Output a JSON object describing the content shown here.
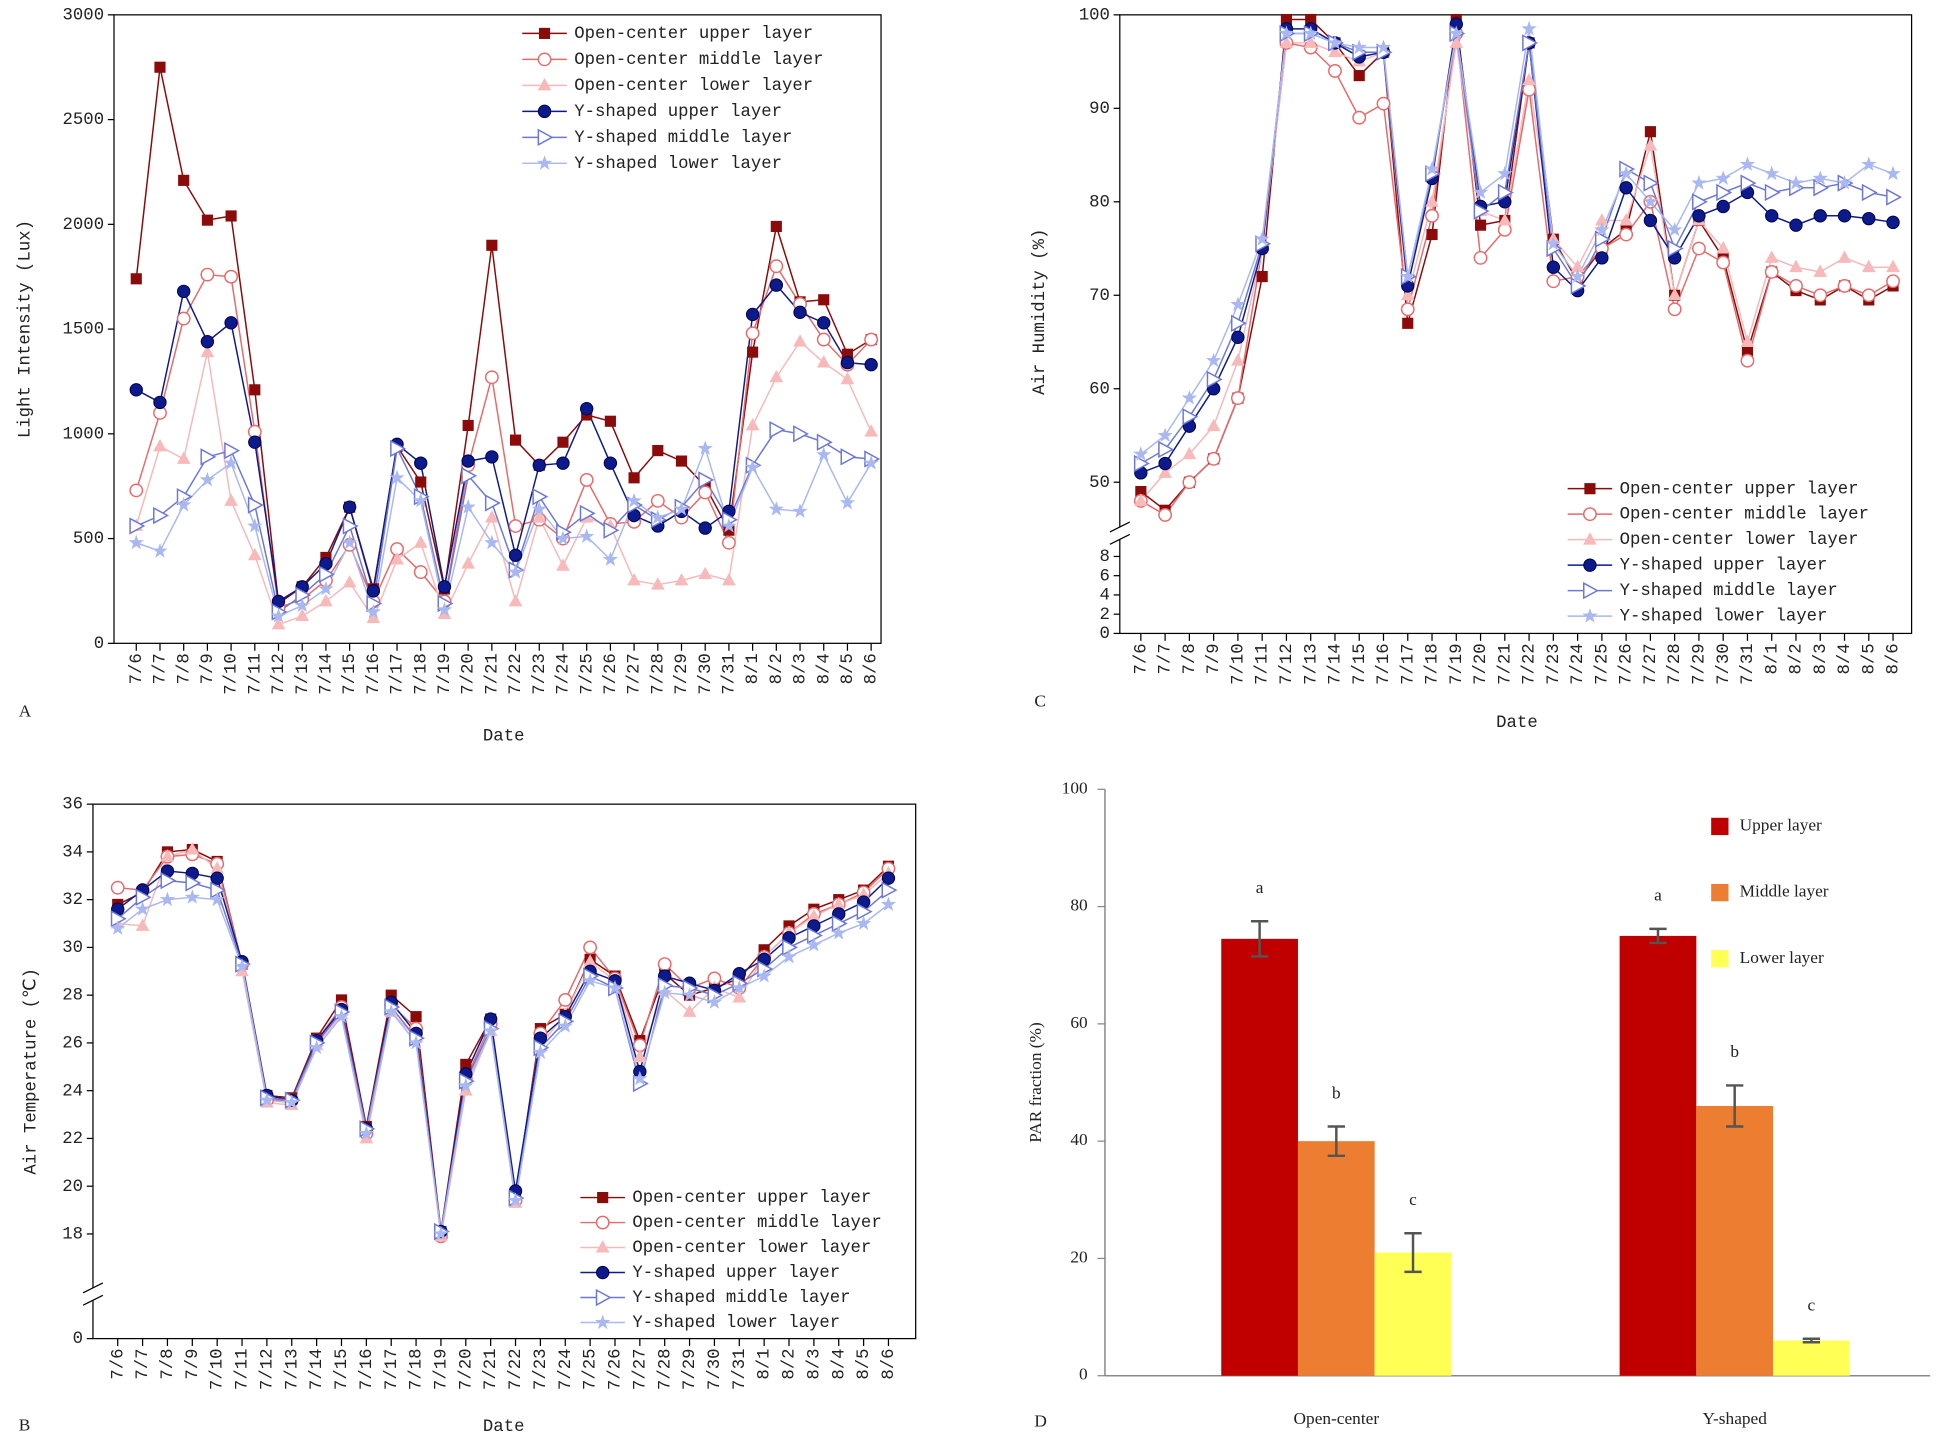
{
  "chart_data": [
    {
      "type": "line",
      "label": "A",
      "xlabel": "Date",
      "ylabel": "Light Intensity (Lux)",
      "legend": "upper right",
      "categories": [
        "7/6",
        "7/7",
        "7/8",
        "7/9",
        "7/10",
        "7/11",
        "7/12",
        "7/13",
        "7/14",
        "7/15",
        "7/16",
        "7/17",
        "7/18",
        "7/19",
        "7/20",
        "7/21",
        "7/22",
        "7/23",
        "7/24",
        "7/25",
        "7/26",
        "7/27",
        "7/28",
        "7/29",
        "7/30",
        "7/31",
        "8/1",
        "8/2",
        "8/3",
        "8/4",
        "8/5",
        "8/6"
      ],
      "ylim": [
        0,
        3000
      ],
      "yticks": [
        0,
        500,
        1000,
        1500,
        2000,
        2500,
        3000
      ],
      "series": [
        {
          "name": "Open-center upper layer",
          "color": "#8b0a0a",
          "marker": "square",
          "values": [
            1740,
            2750,
            2210,
            2020,
            2040,
            1210,
            190,
            270,
            410,
            650,
            260,
            940,
            770,
            260,
            1040,
            1900,
            970,
            850,
            960,
            1090,
            1060,
            790,
            920,
            870,
            750,
            540,
            1390,
            1990,
            1630,
            1640,
            1380,
            1450
          ]
        },
        {
          "name": "Open-center middle layer",
          "color": "#e86a6a",
          "marker": "circle-open",
          "values": [
            730,
            1100,
            1550,
            1760,
            1750,
            1010,
            170,
            210,
            300,
            470,
            200,
            450,
            340,
            200,
            850,
            1270,
            560,
            590,
            500,
            780,
            570,
            580,
            680,
            600,
            720,
            480,
            1480,
            1800,
            1620,
            1450,
            1330,
            1450
          ]
        },
        {
          "name": "Open-center lower layer",
          "color": "#f7b9b9",
          "marker": "triangle",
          "values": [
            560,
            940,
            880,
            1390,
            680,
            420,
            90,
            130,
            200,
            290,
            120,
            400,
            480,
            140,
            380,
            600,
            200,
            600,
            370,
            600,
            560,
            300,
            280,
            300,
            330,
            300,
            1040,
            1270,
            1440,
            1340,
            1260,
            1010
          ]
        },
        {
          "name": "Y-shaped upper layer",
          "color": "#0d1a8c",
          "marker": "circle",
          "values": [
            1210,
            1150,
            1680,
            1440,
            1530,
            960,
            200,
            270,
            380,
            650,
            250,
            950,
            860,
            270,
            870,
            890,
            420,
            850,
            860,
            1120,
            860,
            610,
            560,
            630,
            550,
            630,
            1570,
            1710,
            1580,
            1530,
            1340,
            1330
          ]
        },
        {
          "name": "Y-shaped middle layer",
          "color": "#6c78d8",
          "marker": "triangle-open",
          "values": [
            560,
            610,
            700,
            890,
            920,
            660,
            150,
            230,
            330,
            560,
            190,
            930,
            700,
            190,
            800,
            670,
            350,
            700,
            530,
            620,
            540,
            660,
            590,
            650,
            780,
            590,
            850,
            1020,
            1000,
            960,
            890,
            880
          ]
        },
        {
          "name": "Y-shaped lower layer",
          "color": "#aab8f2",
          "marker": "star",
          "values": [
            480,
            440,
            660,
            780,
            860,
            560,
            130,
            180,
            260,
            480,
            150,
            790,
            680,
            160,
            650,
            480,
            340,
            640,
            500,
            510,
            400,
            680,
            600,
            640,
            930,
            560,
            840,
            640,
            630,
            900,
            670,
            860
          ]
        }
      ]
    },
    {
      "type": "line",
      "label": "B",
      "xlabel": "Date",
      "ylabel": "Air Temperature (℃)",
      "legend": "lower right",
      "categories": [
        "7/6",
        "7/7",
        "7/8",
        "7/9",
        "7/10",
        "7/11",
        "7/12",
        "7/13",
        "7/14",
        "7/15",
        "7/16",
        "7/17",
        "7/18",
        "7/19",
        "7/20",
        "7/21",
        "7/22",
        "7/23",
        "7/24",
        "7/25",
        "7/26",
        "7/27",
        "7/28",
        "7/29",
        "7/30",
        "7/31",
        "8/1",
        "8/2",
        "8/3",
        "8/4",
        "8/5",
        "8/6"
      ],
      "ylim": [
        16,
        36
      ],
      "yticks": [
        18,
        20,
        22,
        24,
        26,
        28,
        30,
        32,
        34,
        36
      ],
      "ylim_break": [
        0,
        1
      ],
      "yticks_break": [
        0
      ],
      "series": [
        {
          "name": "Open-center upper layer",
          "color": "#8b0a0a",
          "marker": "square",
          "values": [
            31.8,
            32.3,
            34.0,
            34.1,
            33.6,
            29.3,
            23.8,
            23.7,
            26.2,
            27.8,
            22.5,
            28.0,
            27.1,
            18.1,
            25.1,
            27.0,
            19.5,
            26.6,
            27.2,
            29.5,
            28.8,
            26.1,
            28.9,
            28.0,
            28.3,
            28.7,
            29.9,
            30.9,
            31.6,
            32.0,
            32.4,
            33.4
          ]
        },
        {
          "name": "Open-center middle layer",
          "color": "#e86a6a",
          "marker": "circle-open",
          "values": [
            32.5,
            32.4,
            33.8,
            33.9,
            33.5,
            29.3,
            23.6,
            23.6,
            26.1,
            27.5,
            22.2,
            27.6,
            26.6,
            17.9,
            24.5,
            26.8,
            19.4,
            26.4,
            27.8,
            30.0,
            28.7,
            25.9,
            29.3,
            28.3,
            28.7,
            28.3,
            29.6,
            30.6,
            31.4,
            31.8,
            32.3,
            33.3
          ]
        },
        {
          "name": "Open-center lower layer",
          "color": "#f7b9b9",
          "marker": "triangle",
          "values": [
            31.0,
            30.9,
            33.8,
            34.1,
            33.3,
            29.0,
            23.5,
            23.4,
            25.9,
            27.2,
            22.0,
            27.3,
            26.2,
            17.9,
            24.0,
            26.5,
            19.3,
            25.9,
            27.2,
            29.4,
            28.6,
            25.4,
            28.2,
            27.3,
            28.3,
            27.9,
            29.6,
            30.6,
            31.3,
            31.8,
            32.2,
            33.1
          ]
        },
        {
          "name": "Y-shaped upper layer",
          "color": "#0d1a8c",
          "marker": "circle",
          "values": [
            31.6,
            32.4,
            33.2,
            33.1,
            32.9,
            29.4,
            23.8,
            23.6,
            26.1,
            27.4,
            22.4,
            27.7,
            26.4,
            18.1,
            24.7,
            27.0,
            19.8,
            26.2,
            27.1,
            29.0,
            28.6,
            24.8,
            28.8,
            28.5,
            28.2,
            28.9,
            29.5,
            30.4,
            30.9,
            31.4,
            31.9,
            32.9
          ]
        },
        {
          "name": "Y-shaped middle layer",
          "color": "#6c78d8",
          "marker": "triangle-open",
          "values": [
            31.2,
            32.1,
            32.8,
            32.7,
            32.4,
            29.3,
            23.7,
            23.6,
            26.0,
            27.3,
            22.4,
            27.5,
            26.2,
            18.1,
            24.4,
            26.6,
            19.5,
            25.8,
            26.9,
            28.8,
            28.3,
            24.3,
            28.4,
            28.3,
            28.0,
            28.5,
            29.1,
            30.0,
            30.5,
            31.0,
            31.5,
            32.4
          ]
        },
        {
          "name": "Y-shaped lower layer",
          "color": "#aab8f2",
          "marker": "star",
          "values": [
            30.8,
            31.6,
            32.0,
            32.1,
            32.0,
            29.2,
            23.6,
            23.5,
            25.8,
            27.1,
            22.2,
            27.3,
            26.0,
            18.0,
            24.2,
            26.5,
            19.4,
            25.6,
            26.7,
            28.6,
            28.3,
            24.5,
            28.1,
            28.0,
            27.7,
            28.3,
            28.8,
            29.6,
            30.1,
            30.6,
            31.0,
            31.8
          ]
        }
      ]
    },
    {
      "type": "line",
      "label": "C",
      "xlabel": "Date",
      "ylabel": "Air Humidity (%)",
      "legend": "lower right",
      "categories": [
        "7/6",
        "7/7",
        "7/8",
        "7/9",
        "7/10",
        "7/11",
        "7/12",
        "7/13",
        "7/14",
        "7/15",
        "7/16",
        "7/17",
        "7/18",
        "7/19",
        "7/20",
        "7/21",
        "7/22",
        "7/23",
        "7/24",
        "7/25",
        "7/26",
        "7/27",
        "7/28",
        "7/29",
        "7/30",
        "7/31",
        "8/1",
        "8/2",
        "8/3",
        "8/4",
        "8/5",
        "8/6"
      ],
      "ylim": [
        46,
        100
      ],
      "yticks": [
        50,
        60,
        70,
        80,
        90,
        100
      ],
      "ylim_break": [
        0,
        9
      ],
      "yticks_break": [
        0,
        2,
        4,
        6,
        8
      ],
      "series": [
        {
          "name": "Open-center upper layer",
          "color": "#8b0a0a",
          "marker": "square",
          "values": [
            49,
            47,
            50,
            52.5,
            59,
            72,
            99.5,
            99.5,
            97,
            93.5,
            96,
            67,
            76.5,
            99.5,
            77.5,
            78,
            97,
            76,
            71.5,
            75,
            77,
            87.5,
            70,
            78,
            74,
            64,
            72.5,
            70.5,
            69.5,
            71,
            69.5,
            71
          ]
        },
        {
          "name": "Open-center middle layer",
          "color": "#e86a6a",
          "marker": "circle-open",
          "values": [
            48,
            46.5,
            50,
            52.5,
            59,
            75,
            97,
            96.5,
            94,
            89,
            90.5,
            68.5,
            78.5,
            98,
            74,
            77,
            92,
            71.5,
            72,
            75,
            76.5,
            80,
            68.5,
            75,
            73.5,
            63,
            72.5,
            71,
            70,
            71,
            70,
            71.5
          ]
        },
        {
          "name": "Open-center lower layer",
          "color": "#f7b9b9",
          "marker": "triangle",
          "values": [
            48,
            51,
            53,
            56,
            63,
            75,
            97,
            97,
            96,
            95,
            96,
            70,
            80,
            97,
            79,
            78,
            93,
            76,
            73,
            78,
            78,
            86,
            70,
            78,
            75,
            65,
            74,
            73,
            72.5,
            74,
            73,
            73
          ]
        },
        {
          "name": "Y-shaped upper layer",
          "color": "#0d1a8c",
          "marker": "circle",
          "values": [
            51,
            52,
            56,
            60,
            65.5,
            75,
            98.5,
            98.5,
            97,
            95.5,
            96,
            71,
            82.5,
            99,
            79.5,
            80,
            97,
            73,
            70.5,
            74,
            81.5,
            78,
            74,
            78.5,
            79.5,
            81,
            78.5,
            77.5,
            78.5,
            78.5,
            78.2,
            77.8
          ]
        },
        {
          "name": "Y-shaped middle layer",
          "color": "#6c78d8",
          "marker": "triangle-open",
          "values": [
            52,
            53.5,
            57,
            61,
            67,
            75.5,
            98,
            98,
            97,
            96,
            96,
            72,
            83,
            98,
            79,
            81,
            97,
            75,
            71,
            76,
            83.5,
            82,
            75,
            80,
            81,
            82,
            81,
            81.5,
            81.5,
            82,
            81,
            80.5
          ]
        },
        {
          "name": "Y-shaped lower layer",
          "color": "#aab8f2",
          "marker": "star",
          "values": [
            53,
            55,
            59,
            63,
            69,
            76,
            98,
            98,
            97,
            96.5,
            96.5,
            72,
            83.5,
            98,
            81,
            83,
            98.5,
            75.5,
            72,
            77,
            83,
            80,
            77,
            82,
            82.5,
            84,
            83,
            82,
            82.5,
            82,
            84,
            83
          ]
        }
      ]
    },
    {
      "type": "bar",
      "label": "D",
      "ylabel": "PAR fraction (%)",
      "legend": "upper right",
      "categories": [
        "Open-center",
        "Y-shaped"
      ],
      "ylim": [
        0,
        100
      ],
      "yticks": [
        0,
        20,
        40,
        60,
        80,
        100
      ],
      "series": [
        {
          "name": "Upper layer",
          "color": "#c00000",
          "values": [
            74.5,
            75
          ],
          "errors": [
            3,
            1.2
          ],
          "letters": [
            "a",
            "a"
          ]
        },
        {
          "name": "Middle layer",
          "color": "#ed7d31",
          "values": [
            40,
            46
          ],
          "errors": [
            2.5,
            3.5
          ],
          "letters": [
            "b",
            "b"
          ]
        },
        {
          "name": "Lower layer",
          "color": "#ffff55",
          "values": [
            21,
            6
          ],
          "errors": [
            3.3,
            0.3
          ],
          "letters": [
            "c",
            "c"
          ]
        }
      ]
    }
  ]
}
